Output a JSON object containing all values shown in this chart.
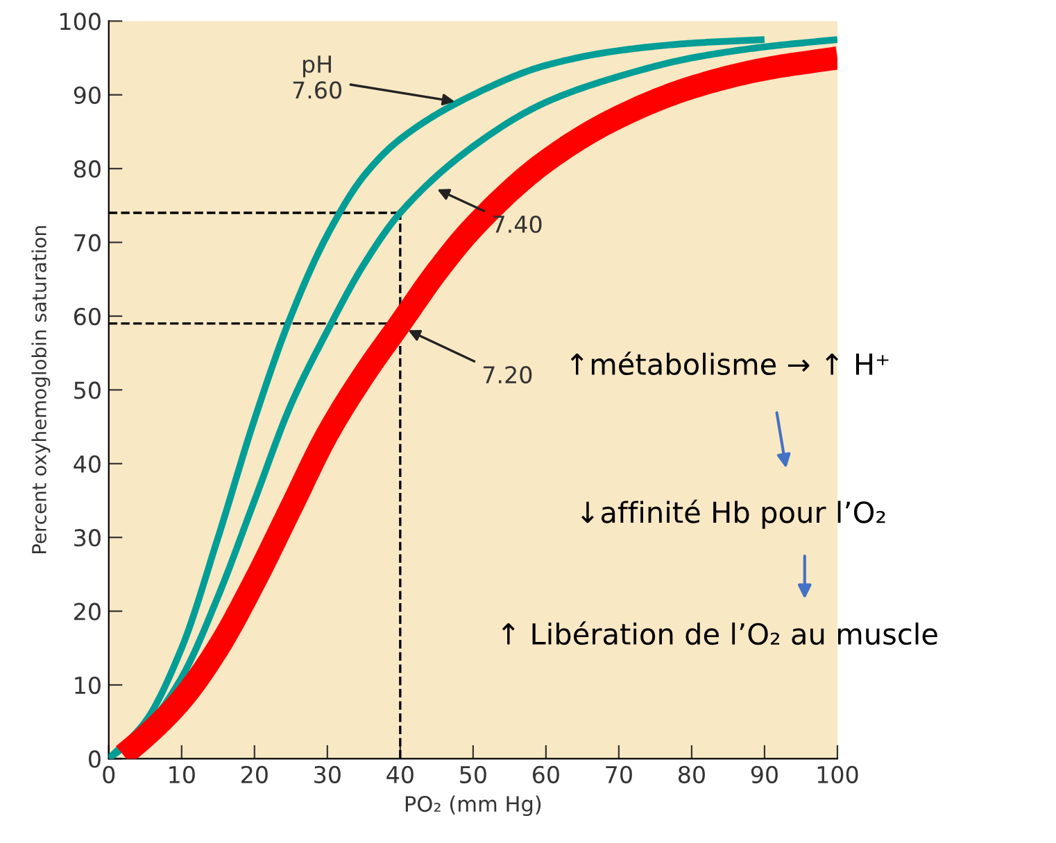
{
  "chart_data": {
    "type": "line",
    "xlabel": "PO₂ (mm Hg)",
    "ylabel": "Percent oxyhemoglobin saturation",
    "series": [
      {
        "color": "#009e96",
        "x": [
          0,
          5,
          10,
          15,
          20,
          25,
          30,
          35,
          40,
          50,
          60,
          70,
          80,
          90
        ],
        "values": [
          0,
          5,
          15,
          30,
          46,
          60,
          71,
          79,
          84,
          90,
          94,
          96,
          97,
          97.5
        ]
      },
      {
        "color": "#009e96",
        "x": [
          0,
          5,
          10,
          15,
          20,
          25,
          30,
          35,
          40,
          50,
          60,
          70,
          80,
          90,
          100
        ],
        "values": [
          0,
          4,
          11,
          22,
          35,
          48,
          58,
          67,
          74,
          83,
          89,
          92.5,
          95,
          96.5,
          97.5
        ]
      },
      {
        "color": "#ff0000",
        "x": [
          2,
          5,
          10,
          15,
          20,
          25,
          30,
          35,
          40,
          45,
          50,
          60,
          70,
          80,
          90,
          100
        ],
        "values": [
          0.5,
          3,
          8,
          15,
          24,
          34,
          44,
          52,
          59,
          66,
          72,
          81,
          87,
          91,
          93.5,
          95
        ]
      }
    ],
    "xlim": [
      0,
      100
    ],
    "ylim": [
      0,
      100
    ],
    "xticks": [
      0,
      10,
      20,
      30,
      40,
      50,
      60,
      70,
      80,
      90,
      100
    ],
    "yticks": [
      0,
      10,
      20,
      30,
      40,
      50,
      60,
      70,
      80,
      90,
      100
    ],
    "ref_lines": [
      {
        "axis": "y",
        "value": 74,
        "line_style": "dashed",
        "color": "#000000"
      },
      {
        "axis": "y",
        "value": 59,
        "line_style": "dashed",
        "color": "#000000"
      },
      {
        "axis": "x",
        "value": 40,
        "line_style": "dashed",
        "color": "#000000"
      }
    ],
    "annotations": [
      {
        "text": "pH\n7.60",
        "x": 48,
        "y": 89
      },
      {
        "text": "7.40",
        "x": 44.6,
        "y": 77.4
      },
      {
        "text": "7.20",
        "x": 40.6,
        "y": 58.3
      },
      "↑métabolisme → ↑ H⁺",
      "↓affinité Hb pour l’O₂",
      "↑ Libération de l’O₂ au muscle"
    ],
    "grid": false,
    "marker": "none",
    "line_style": "solid"
  }
}
